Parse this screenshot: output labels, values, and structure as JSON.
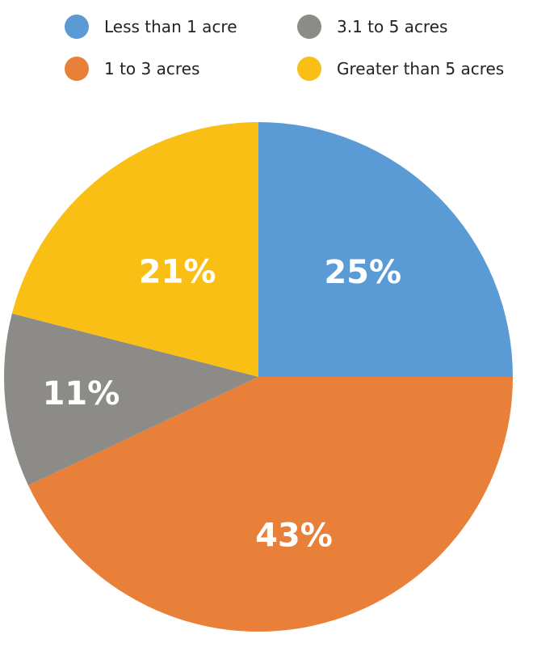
{
  "chart_data": {
    "type": "pie",
    "title": "",
    "categories": [
      "Less than 1 acre",
      "1 to 3 acres",
      "3.1 to 5 acres",
      "Greater than 5 acres"
    ],
    "values": [
      25,
      43,
      11,
      21
    ],
    "value_labels": [
      "25%",
      "43%",
      "11%",
      "21%"
    ],
    "colors": [
      "#5b9bd5",
      "#e8803a",
      "#8c8b87",
      "#f9bf14"
    ],
    "legend_placement": "top"
  }
}
